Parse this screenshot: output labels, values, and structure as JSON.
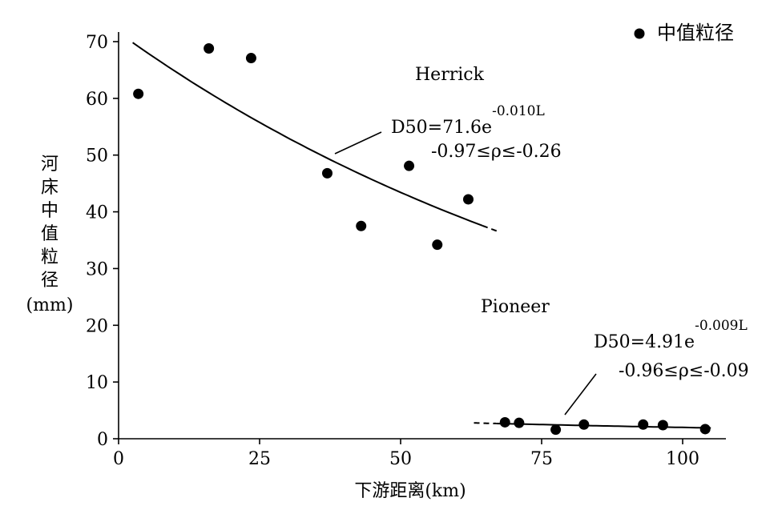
{
  "chart_data": {
    "type": "scatter",
    "xlabel": "下游距离(km)",
    "ylabel": "河床中值粒径(mm)",
    "ylabel_chars": [
      "河",
      "床",
      "中",
      "值",
      "粒",
      "径",
      "(mm)"
    ],
    "xlim": [
      0,
      107
    ],
    "ylim": [
      0,
      72
    ],
    "x_ticks": [
      0,
      25,
      50,
      75,
      100
    ],
    "y_ticks": [
      0,
      10,
      20,
      30,
      40,
      50,
      60,
      70
    ],
    "grid": false,
    "legend": {
      "position": "top-right",
      "entries": [
        {
          "label": "中值粒径",
          "marker": "filled-circle",
          "color": "#000000"
        }
      ]
    },
    "points": [
      {
        "group": "Herrick",
        "x": 3.5,
        "y": 60.8
      },
      {
        "group": "Herrick",
        "x": 16,
        "y": 68.8
      },
      {
        "group": "Herrick",
        "x": 23.5,
        "y": 67.1
      },
      {
        "group": "Herrick",
        "x": 37,
        "y": 46.8
      },
      {
        "group": "Herrick",
        "x": 43,
        "y": 37.5
      },
      {
        "group": "Herrick",
        "x": 51.5,
        "y": 48.1
      },
      {
        "group": "Herrick",
        "x": 56.5,
        "y": 34.2
      },
      {
        "group": "Herrick",
        "x": 62,
        "y": 42.2
      },
      {
        "group": "Pioneer",
        "x": 68.5,
        "y": 2.9
      },
      {
        "group": "Pioneer",
        "x": 71,
        "y": 2.8
      },
      {
        "group": "Pioneer",
        "x": 77.5,
        "y": 1.6
      },
      {
        "group": "Pioneer",
        "x": 82.5,
        "y": 2.5
      },
      {
        "group": "Pioneer",
        "x": 93,
        "y": 2.5
      },
      {
        "group": "Pioneer",
        "x": 96.5,
        "y": 2.4
      },
      {
        "group": "Pioneer",
        "x": 104,
        "y": 1.7
      }
    ],
    "fits": [
      {
        "group": "Herrick",
        "a": 71.6,
        "b": -0.01,
        "x_solid": [
          2.5,
          64.5
        ],
        "x_dashed": [
          64.5,
          67.5
        ]
      },
      {
        "group": "Pioneer",
        "a": 4.91,
        "b": -0.009,
        "x_dashed": [
          63,
          67
        ],
        "x_solid": [
          67,
          105
        ]
      }
    ],
    "annotations": {
      "herrick_label": "Herrick",
      "pioneer_label": "Pioneer",
      "herrick_eq_base": "D50=71.6e",
      "herrick_eq_exp": "-0.010L",
      "herrick_rho": "-0.97≤ρ≤-0.26",
      "pioneer_eq_base": "D50=4.91e",
      "pioneer_eq_exp": "-0.009L",
      "pioneer_rho": "-0.96≤ρ≤-0.09"
    }
  }
}
